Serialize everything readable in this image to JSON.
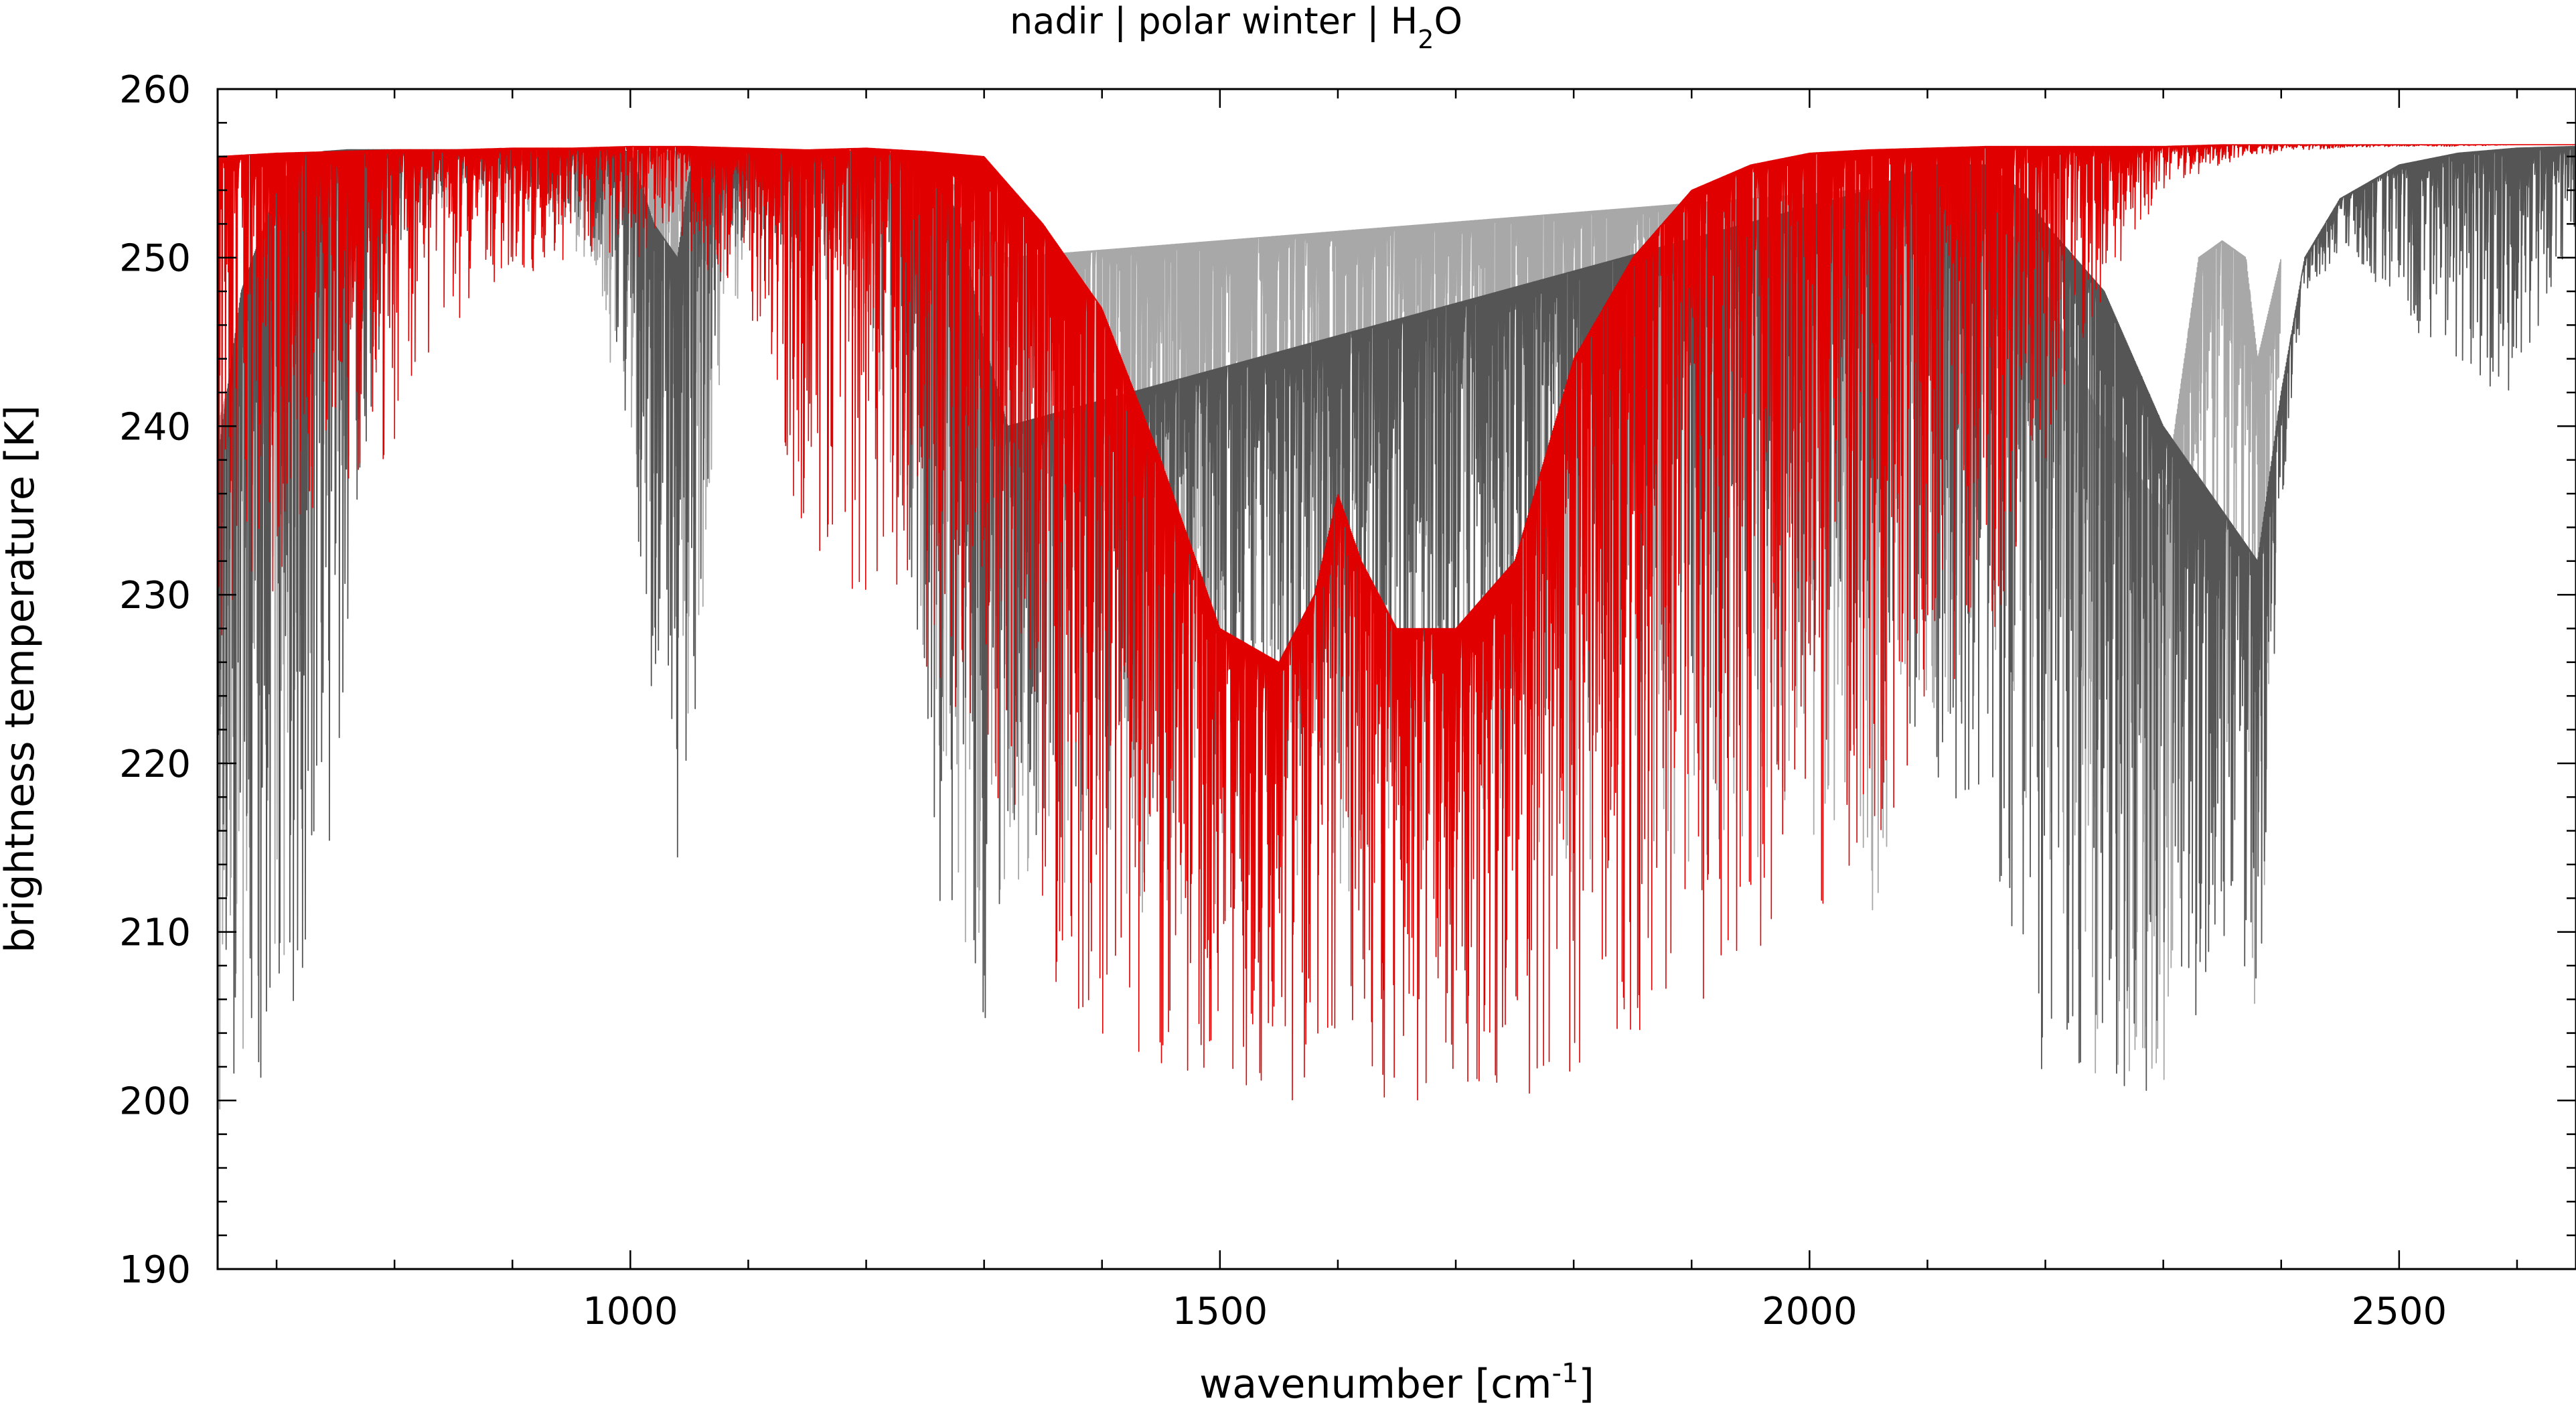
{
  "chart_data": {
    "type": "line",
    "title": {
      "prefix": "nadir | polar winter | H",
      "subscript": "2",
      "suffix": "O"
    },
    "xlabel": {
      "prefix": "wavenumber [cm",
      "superscript": "-1",
      "suffix": "]"
    },
    "ylabel": "brightness temperature [K]",
    "xlim": [
      650,
      2650
    ],
    "ylim": [
      190,
      260
    ],
    "x_ticks": [
      1000,
      1500,
      2000,
      2500
    ],
    "x_tick_labels": [
      "1000",
      "1500",
      "2000",
      "2500"
    ],
    "x_minor_step": 100,
    "y_ticks": [
      190,
      200,
      210,
      220,
      230,
      240,
      250,
      260
    ],
    "y_tick_labels": [
      "190",
      "200",
      "210",
      "220",
      "230",
      "240",
      "250",
      "260"
    ],
    "y_minor_step": 2,
    "grid": false,
    "legend": "none",
    "colors": {
      "h2o_spectrum": "#e00000",
      "total_spectrum": "#555555",
      "secondary_spectrum": "#a8a8a8",
      "axes": "#000000"
    },
    "series": [
      {
        "role": "total_spectrum",
        "color": "#555555",
        "envelope": {
          "x": [
            650,
            670,
            700,
            720,
            740,
            760,
            780,
            800,
            850,
            900,
            950,
            980,
            1000,
            1020,
            1040,
            1050,
            1060,
            1080,
            1100,
            1150,
            1200,
            1240,
            1260,
            1280,
            1300,
            1320,
            2050,
            2100,
            2150,
            2180,
            2200,
            2250,
            2300,
            2340,
            2360,
            2380,
            2400,
            2420,
            2450,
            2500,
            2550,
            2600,
            2650
          ],
          "upper": [
            238,
            248,
            254,
            256,
            256.3,
            256.4,
            256.4,
            256.4,
            256.4,
            256.4,
            256.4,
            256.4,
            256.3,
            252,
            250,
            255,
            256.2,
            256.3,
            256.3,
            256.3,
            256.3,
            256.2,
            255.5,
            252,
            245,
            240,
            254,
            255.5,
            255.5,
            254,
            252,
            248,
            240,
            236,
            234,
            232,
            242,
            250,
            253.5,
            255.5,
            256.2,
            256.5,
            256.6
          ],
          "lower": [
            199,
            199,
            199,
            200,
            212,
            225,
            240,
            250,
            254,
            254.5,
            253,
            250,
            238,
            220,
            214,
            216,
            230,
            250,
            251,
            250,
            248,
            230,
            212,
            204,
            200,
            215,
            225,
            220,
            215,
            205,
            201,
            200,
            200,
            205,
            212,
            200,
            235,
            248,
            250,
            247,
            242,
            242,
            252
          ]
        }
      },
      {
        "role": "secondary_spectrum",
        "color": "#a8a8a8",
        "envelope": {
          "x": [
            650,
            680,
            700,
            720,
            740,
            760,
            780,
            800,
            850,
            900,
            950,
            1000,
            1050,
            1100,
            1150,
            1200,
            1240,
            1280,
            1320,
            2040,
            2060,
            2080,
            2100,
            2150,
            2200,
            2250,
            2300,
            2330,
            2350,
            2370,
            2380,
            2400
          ],
          "upper": [
            240,
            248,
            252,
            255,
            256.2,
            256.4,
            256.4,
            256.4,
            256.4,
            256.4,
            256.4,
            256.3,
            256.3,
            256.3,
            256.3,
            256.3,
            256.2,
            254,
            250,
            254,
            254,
            255,
            255.5,
            254,
            248,
            240,
            235,
            250,
            251,
            250,
            244,
            250
          ],
          "lower": [
            199,
            201,
            205,
            215,
            228,
            240,
            248,
            252,
            253,
            253,
            251,
            240,
            220,
            252,
            248,
            246,
            228,
            205,
            210,
            215,
            208,
            225,
            222,
            222,
            212,
            199,
            200,
            225,
            218,
            214,
            200,
            242
          ]
        }
      },
      {
        "role": "h2o_spectrum",
        "color": "#e00000",
        "envelope": {
          "x": [
            650,
            700,
            750,
            800,
            850,
            900,
            950,
            1000,
            1050,
            1100,
            1150,
            1200,
            1250,
            1300,
            1350,
            1400,
            1450,
            1500,
            1550,
            1580,
            1600,
            1620,
            1650,
            1700,
            1750,
            1800,
            1850,
            1900,
            1950,
            2000,
            2050,
            2100,
            2150,
            2200,
            2250,
            2300,
            2350,
            2400,
            2450,
            2500,
            2550,
            2600,
            2650
          ],
          "upper": [
            256,
            256.2,
            256.3,
            256.4,
            256.4,
            256.5,
            256.5,
            256.6,
            256.6,
            256.5,
            256.4,
            256.5,
            256.3,
            256,
            252,
            247,
            238,
            228,
            226,
            230,
            236,
            232,
            228,
            228,
            232,
            244,
            250,
            254,
            255.5,
            256.2,
            256.4,
            256.5,
            256.6,
            256.6,
            256.6,
            256.6,
            256.7,
            256.7,
            256.7,
            256.7,
            256.7,
            256.7,
            256.7
          ],
          "lower": [
            226,
            230,
            236,
            238,
            246,
            248,
            250,
            250,
            250,
            247,
            232,
            229,
            226,
            216,
            208,
            203,
            201,
            201,
            200,
            200,
            204,
            200,
            200,
            200,
            200,
            201,
            204,
            205,
            207,
            210,
            214,
            220,
            226,
            238,
            248,
            254,
            255.5,
            256.3,
            256.5,
            256.6,
            256.6,
            256.7,
            256.7
          ]
        }
      }
    ]
  }
}
